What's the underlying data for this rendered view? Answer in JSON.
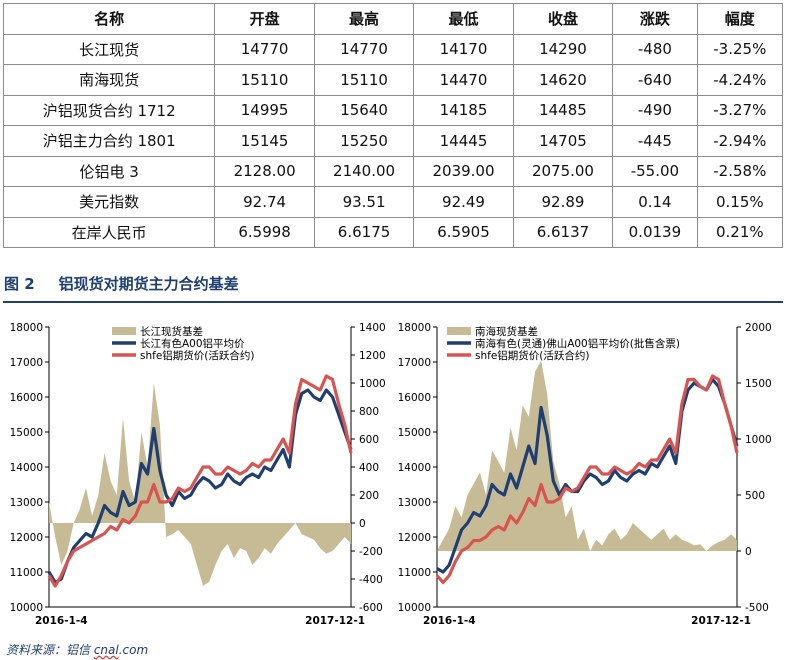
{
  "table": {
    "headers": [
      "名称",
      "开盘",
      "最高",
      "最低",
      "收盘",
      "涨跌",
      "幅度"
    ],
    "rows": [
      [
        "长江现货",
        "14770",
        "14770",
        "14170",
        "14290",
        "-480",
        "-3.25%"
      ],
      [
        "南海现货",
        "15110",
        "15110",
        "14470",
        "14620",
        "-640",
        "-4.24%"
      ],
      [
        "沪铝现货合约 1712",
        "14995",
        "15640",
        "14185",
        "14485",
        "-490",
        "-3.27%"
      ],
      [
        "沪铝主力合约 1801",
        "15145",
        "15250",
        "14445",
        "14705",
        "-445",
        "-2.94%"
      ],
      [
        "伦铝电 3",
        "2128.00",
        "2140.00",
        "2039.00",
        "2075.00",
        "-55.00",
        "-2.58%"
      ],
      [
        "美元指数",
        "92.74",
        "93.51",
        "92.49",
        "92.89",
        "0.14",
        "0.15%"
      ],
      [
        "在岸人民币",
        "6.5998",
        "6.6175",
        "6.5905",
        "6.6137",
        "0.0139",
        "0.21%"
      ]
    ]
  },
  "figure": {
    "number": "图 2",
    "title": "铝现货对期货主力合约基差"
  },
  "source": {
    "prefix": "资料来源：铝信 ",
    "site": "cnal",
    "suffix": ".com"
  },
  "colors": {
    "spot": "#1f3f73",
    "futures": "#d9534f",
    "basis": "#c7bb95",
    "title": "#1f3f73"
  },
  "chart_data": [
    {
      "type": "line",
      "x_start": "2016-1-4",
      "x_end": "2017-12-1",
      "ylim_left": [
        10000,
        18000
      ],
      "yticks_left": [
        10000,
        11000,
        12000,
        13000,
        14000,
        15000,
        16000,
        17000,
        18000
      ],
      "ylim_right": [
        -600,
        1400
      ],
      "yticks_right": [
        -600,
        -400,
        -200,
        0,
        200,
        400,
        600,
        800,
        1000,
        1200,
        1400
      ],
      "series": [
        {
          "name": "长江现货基差",
          "axis": "right",
          "kind": "area",
          "color": "#c7bb95",
          "values": [
            150,
            -100,
            -300,
            -200,
            0,
            100,
            250,
            50,
            200,
            500,
            300,
            200,
            750,
            300,
            150,
            650,
            400,
            1000,
            700,
            -100,
            -80,
            -50,
            -100,
            -150,
            -300,
            -450,
            -420,
            -300,
            -200,
            -150,
            -250,
            -180,
            -200,
            -300,
            -250,
            -180,
            -220,
            -150,
            -100,
            -50,
            0,
            -80,
            -100,
            -120,
            -180,
            -220,
            -200,
            -150,
            -100,
            -150
          ]
        },
        {
          "name": "长江有色A00铝平均价",
          "axis": "left",
          "kind": "line",
          "color": "#1f3f73",
          "values": [
            11000,
            10700,
            10800,
            11300,
            11700,
            11900,
            12100,
            12000,
            12400,
            12900,
            12700,
            12600,
            13300,
            12900,
            13000,
            14100,
            13800,
            15100,
            13900,
            13200,
            12900,
            13300,
            13100,
            13200,
            13500,
            13700,
            13600,
            13400,
            13500,
            13800,
            13600,
            13500,
            13700,
            13800,
            13700,
            14000,
            13900,
            14200,
            14500,
            14000,
            15500,
            16100,
            16200,
            16000,
            15900,
            16200,
            16000,
            15500,
            15000,
            14500
          ]
        },
        {
          "name": "shfe铝期货价(活跃合约)",
          "axis": "left",
          "kind": "line",
          "color": "#d9534f",
          "values": [
            10900,
            10600,
            10900,
            11300,
            11600,
            11700,
            11800,
            11900,
            12000,
            12100,
            12300,
            12200,
            12500,
            12400,
            12600,
            13000,
            13000,
            13500,
            13000,
            13000,
            13100,
            13400,
            13300,
            13400,
            13700,
            14000,
            14000,
            13800,
            13800,
            14000,
            13900,
            13800,
            13900,
            14100,
            14000,
            14200,
            14200,
            14500,
            14800,
            14400,
            15800,
            16500,
            16400,
            16300,
            16200,
            16600,
            16500,
            15800,
            15200,
            14400
          ]
        }
      ]
    },
    {
      "type": "line",
      "x_start": "2016-1-4",
      "x_end": "2017-12-1",
      "ylim_left": [
        10000,
        18000
      ],
      "yticks_left": [
        10000,
        11000,
        12000,
        13000,
        14000,
        15000,
        16000,
        17000,
        18000
      ],
      "ylim_right": [
        -500,
        2000
      ],
      "yticks_right": [
        -500,
        0,
        500,
        1000,
        1500,
        2000
      ],
      "series": [
        {
          "name": "南海现货基差",
          "axis": "right",
          "kind": "area",
          "color": "#c7bb95",
          "values": [
            0,
            100,
            200,
            400,
            300,
            500,
            600,
            700,
            500,
            900,
            800,
            700,
            1100,
            900,
            1300,
            1200,
            1600,
            1700,
            1400,
            800,
            600,
            300,
            400,
            100,
            200,
            0,
            100,
            50,
            150,
            200,
            100,
            150,
            250,
            200,
            150,
            100,
            150,
            200,
            100,
            150,
            100,
            80,
            50,
            60,
            0,
            50,
            80,
            100,
            150,
            100
          ]
        },
        {
          "name": "南海有色(灵通)佛山A00铝平均价(批售含票)",
          "axis": "left",
          "kind": "line",
          "color": "#1f3f73",
          "values": [
            11100,
            11000,
            11200,
            11700,
            12200,
            12400,
            12700,
            12600,
            12900,
            13500,
            13300,
            13200,
            13800,
            13400,
            14000,
            14600,
            14100,
            15700,
            14900,
            13600,
            13200,
            13500,
            13300,
            13300,
            13600,
            13800,
            13700,
            13500,
            13600,
            13900,
            13700,
            13600,
            13800,
            13900,
            13800,
            14100,
            14000,
            14300,
            14600,
            14100,
            15600,
            16200,
            16400,
            16300,
            16200,
            16500,
            16300,
            15800,
            15200,
            14600
          ]
        },
        {
          "name": "shfe铝期货价(活跃合约)",
          "axis": "left",
          "kind": "line",
          "color": "#d9534f",
          "values": [
            10900,
            10700,
            10900,
            11300,
            11600,
            11700,
            11900,
            11900,
            12000,
            12200,
            12300,
            12200,
            12600,
            12400,
            12700,
            13100,
            12900,
            13500,
            13000,
            13000,
            13100,
            13400,
            13300,
            13400,
            13700,
            14000,
            14000,
            13800,
            13800,
            14000,
            13900,
            13800,
            13900,
            14100,
            14000,
            14200,
            14200,
            14500,
            14800,
            14400,
            15800,
            16500,
            16500,
            16300,
            16200,
            16600,
            16500,
            15800,
            15200,
            14400
          ]
        }
      ]
    }
  ]
}
